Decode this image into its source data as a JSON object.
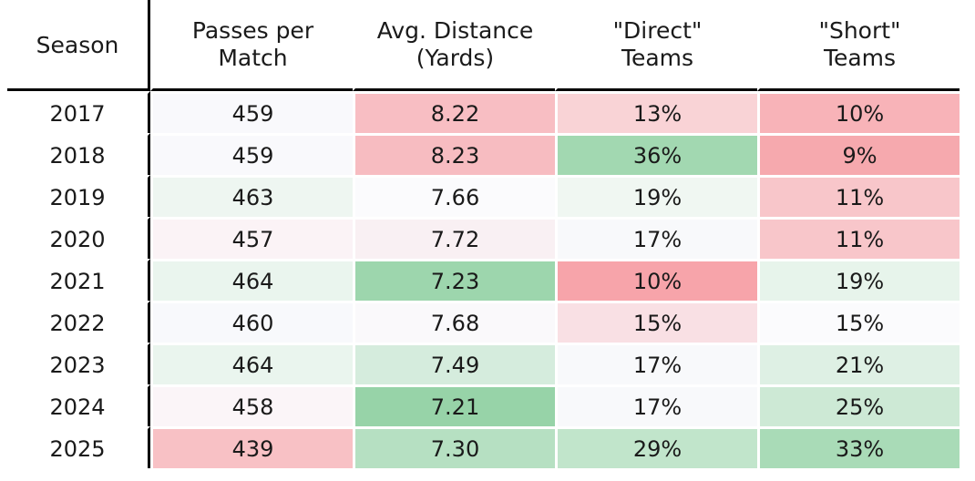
{
  "chart_data": {
    "type": "table",
    "columns": [
      {
        "key": "season",
        "label_lines": [
          "Season"
        ]
      },
      {
        "key": "passes",
        "label_lines": [
          "Passes per",
          "Match"
        ]
      },
      {
        "key": "distance",
        "label_lines": [
          "Avg. Distance",
          "(Yards)"
        ]
      },
      {
        "key": "direct",
        "label_lines": [
          "\"Direct\"",
          "Teams"
        ]
      },
      {
        "key": "short",
        "label_lines": [
          "\"Short\"",
          "Teams"
        ]
      }
    ],
    "rows": [
      {
        "season": "2017",
        "passes": "459",
        "distance": "8.22",
        "direct": "13%",
        "short": "10%"
      },
      {
        "season": "2018",
        "passes": "459",
        "distance": "8.23",
        "direct": "36%",
        "short": "9%"
      },
      {
        "season": "2019",
        "passes": "463",
        "distance": "7.66",
        "direct": "19%",
        "short": "11%"
      },
      {
        "season": "2020",
        "passes": "457",
        "distance": "7.72",
        "direct": "17%",
        "short": "11%"
      },
      {
        "season": "2021",
        "passes": "464",
        "distance": "7.23",
        "direct": "10%",
        "short": "19%"
      },
      {
        "season": "2022",
        "passes": "460",
        "distance": "7.68",
        "direct": "15%",
        "short": "15%"
      },
      {
        "season": "2023",
        "passes": "464",
        "distance": "7.49",
        "direct": "17%",
        "short": "21%"
      },
      {
        "season": "2024",
        "passes": "458",
        "distance": "7.21",
        "direct": "17%",
        "short": "25%"
      },
      {
        "season": "2025",
        "passes": "439",
        "distance": "7.30",
        "direct": "29%",
        "short": "33%"
      }
    ],
    "cell_colors": [
      {
        "passes": "#f9f9fc",
        "distance": "#f8bec3",
        "direct": "#f9d3d6",
        "short": "#f8b3b8"
      },
      {
        "passes": "#f9f9fc",
        "distance": "#f7bcc1",
        "direct": "#a2d8b1",
        "short": "#f6a9ae"
      },
      {
        "passes": "#eef6f1",
        "distance": "#fbfbfd",
        "direct": "#f0f7f2",
        "short": "#f8c6ca"
      },
      {
        "passes": "#fbf3f6",
        "distance": "#f9f0f3",
        "direct": "#f8f9fb",
        "short": "#f8c6ca"
      },
      {
        "passes": "#eaf5ee",
        "distance": "#9dd6ad",
        "direct": "#f7a4aa",
        "short": "#e7f4eb"
      },
      {
        "passes": "#f8f9fc",
        "distance": "#faf9fb",
        "direct": "#f9e0e4",
        "short": "#fbfbfd"
      },
      {
        "passes": "#eaf5ee",
        "distance": "#d5ecdd",
        "direct": "#f8f9fb",
        "short": "#def0e4"
      },
      {
        "passes": "#fbf5f8",
        "distance": "#97d3a8",
        "direct": "#f8f9fb",
        "short": "#cde9d5"
      },
      {
        "passes": "#f8c1c5",
        "distance": "#b6e0c2",
        "direct": "#c1e5cb",
        "short": "#a9dbb7"
      }
    ],
    "header_rule_color": "#000000",
    "season_rule_color": "#000000",
    "color_scale": {
      "low": "#f6a3a9",
      "mid": "#ffffff",
      "high": "#94d2a5"
    }
  }
}
